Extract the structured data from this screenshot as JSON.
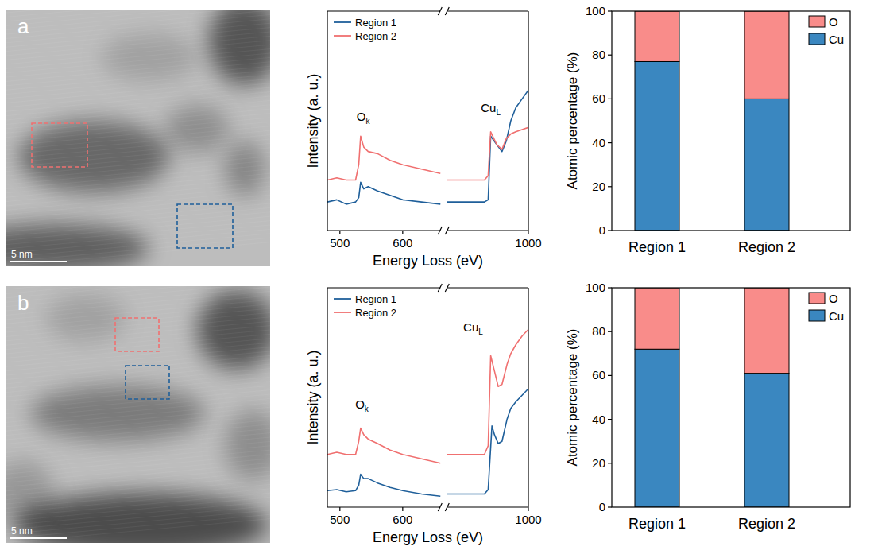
{
  "panels": [
    {
      "label": "a",
      "scale_bar": "5 nm"
    },
    {
      "label": "b",
      "scale_bar": "5 nm"
    }
  ],
  "chart_data": [
    {
      "type": "line",
      "xlabel": "Energy Loss (eV)",
      "ylabel": "Intensity (a. u.)",
      "xlim": [
        480,
        1000
      ],
      "x_break": [
        660,
        870
      ],
      "xticks": [
        500,
        600,
        1000
      ],
      "ylim": [
        0,
        100
      ],
      "tick_labels": "x",
      "legend": "upper left",
      "annotations": [
        {
          "text": "O",
          "sub": "k",
          "x": 537,
          "y": 50
        },
        {
          "text": "Cu",
          "sub": "L",
          "x": 940,
          "y": 54
        }
      ],
      "series": [
        {
          "name": "Region 1",
          "color": "#1f5f9a",
          "x": [
            480,
            495,
            510,
            525,
            530,
            533,
            538,
            545,
            560,
            580,
            600,
            630,
            660,
            null,
            870,
            900,
            930,
            936,
            940,
            945,
            950,
            958,
            965,
            972,
            980,
            990,
            1000
          ],
          "values": [
            13,
            14,
            12,
            13,
            15,
            22,
            19,
            20,
            18,
            16,
            14,
            13,
            12,
            null,
            13,
            13,
            13,
            14,
            43,
            41,
            39,
            36,
            41,
            50,
            56,
            60,
            64
          ]
        },
        {
          "name": "Region 2",
          "color": "#f07070",
          "x": [
            480,
            495,
            510,
            525,
            530,
            533,
            538,
            545,
            560,
            580,
            600,
            630,
            660,
            null,
            870,
            900,
            930,
            936,
            940,
            945,
            950,
            958,
            965,
            972,
            980,
            990,
            1000
          ],
          "values": [
            23,
            24,
            23,
            23,
            30,
            43,
            38,
            36,
            35,
            32,
            30,
            28,
            26,
            null,
            23,
            23,
            23,
            25,
            45,
            42,
            39,
            37,
            42,
            44,
            45,
            46,
            47
          ]
        }
      ]
    },
    {
      "type": "bar",
      "stacked": true,
      "ylabel": "Atomic percentage (%)",
      "categories": [
        "Region 1",
        "Region 2"
      ],
      "ylim": [
        0,
        100
      ],
      "yticks": [
        0,
        20,
        40,
        60,
        80,
        100
      ],
      "legend": "upper right",
      "series": [
        {
          "name": "O",
          "color": "#f98c8a",
          "values": [
            23,
            40
          ]
        },
        {
          "name": "Cu",
          "color": "#3a87c0",
          "values": [
            77,
            60
          ]
        }
      ]
    },
    {
      "type": "line",
      "xlabel": "Energy Loss (eV)",
      "ylabel": "Intensity (a. u.)",
      "xlim": [
        480,
        1000
      ],
      "x_break": [
        660,
        870
      ],
      "xticks": [
        500,
        600,
        1000
      ],
      "ylim": [
        0,
        100
      ],
      "tick_labels": "x",
      "legend": "upper left",
      "annotations": [
        {
          "text": "O",
          "sub": "k",
          "x": 535,
          "y": 45
        },
        {
          "text": "Cu",
          "sub": "L",
          "x": 912,
          "y": 80
        }
      ],
      "series": [
        {
          "name": "Region 1",
          "color": "#1f5f9a",
          "x": [
            480,
            495,
            510,
            525,
            530,
            533,
            538,
            545,
            560,
            580,
            600,
            630,
            660,
            null,
            870,
            900,
            930,
            936,
            942,
            946,
            952,
            958,
            966,
            972,
            980,
            990,
            1000
          ],
          "values": [
            7.5,
            8,
            7,
            7.5,
            10,
            15,
            13,
            13,
            11,
            9,
            7.5,
            6,
            5,
            null,
            6,
            6,
            6,
            8,
            37,
            33,
            29,
            30,
            40,
            45,
            48,
            51,
            54
          ]
        },
        {
          "name": "Region 2",
          "color": "#f07070",
          "x": [
            480,
            495,
            510,
            525,
            530,
            533,
            538,
            545,
            560,
            580,
            600,
            630,
            660,
            null,
            870,
            900,
            930,
            936,
            940,
            946,
            952,
            958,
            966,
            972,
            980,
            990,
            1000
          ],
          "values": [
            24,
            25,
            24,
            24,
            30,
            36,
            33,
            31,
            29,
            26,
            24,
            22,
            20,
            null,
            24,
            24,
            24,
            28,
            69,
            62,
            55,
            56,
            65,
            70,
            74,
            78,
            81
          ]
        }
      ]
    },
    {
      "type": "bar",
      "stacked": true,
      "ylabel": "Atomic percentage (%)",
      "categories": [
        "Region 1",
        "Region 2"
      ],
      "ylim": [
        0,
        100
      ],
      "yticks": [
        0,
        20,
        40,
        60,
        80,
        100
      ],
      "legend": "upper right",
      "series": [
        {
          "name": "O",
          "color": "#f98c8a",
          "values": [
            28,
            39
          ]
        },
        {
          "name": "Cu",
          "color": "#3a87c0",
          "values": [
            72,
            61
          ]
        }
      ]
    }
  ]
}
